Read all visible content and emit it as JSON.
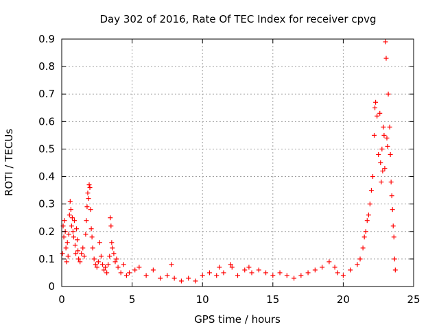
{
  "chart_data": {
    "type": "scatter",
    "title": "Day 302 of 2016, Rate Of TEC Index for receiver cpvg",
    "xlabel": "GPS time / hours",
    "ylabel": "ROTI / TECUs",
    "xlim": [
      0,
      25
    ],
    "ylim": [
      0,
      0.9
    ],
    "xticks": [
      "0",
      "5",
      "10",
      "15",
      "20",
      "25"
    ],
    "yticks": [
      "0",
      "0.1",
      "0.2",
      "0.3",
      "0.4",
      "0.5",
      "0.6",
      "0.7",
      "0.8",
      "0.9"
    ],
    "grid": true,
    "marker": "+",
    "series": [
      {
        "color": "#ff0000",
        "points": [
          [
            0.05,
            0.12
          ],
          [
            0.1,
            0.22
          ],
          [
            0.15,
            0.18
          ],
          [
            0.2,
            0.24
          ],
          [
            0.25,
            0.2
          ],
          [
            0.3,
            0.14
          ],
          [
            0.35,
            0.09
          ],
          [
            0.4,
            0.16
          ],
          [
            0.45,
            0.11
          ],
          [
            0.5,
            0.19
          ],
          [
            0.55,
            0.26
          ],
          [
            0.6,
            0.31
          ],
          [
            0.65,
            0.28
          ],
          [
            0.7,
            0.22
          ],
          [
            0.75,
            0.25
          ],
          [
            0.8,
            0.2
          ],
          [
            0.85,
            0.18
          ],
          [
            0.9,
            0.24
          ],
          [
            0.95,
            0.15
          ],
          [
            1.0,
            0.12
          ],
          [
            1.05,
            0.21
          ],
          [
            1.1,
            0.17
          ],
          [
            1.15,
            0.13
          ],
          [
            1.2,
            0.1
          ],
          [
            1.3,
            0.09
          ],
          [
            1.4,
            0.12
          ],
          [
            1.5,
            0.14
          ],
          [
            1.6,
            0.11
          ],
          [
            1.7,
            0.19
          ],
          [
            1.75,
            0.24
          ],
          [
            1.8,
            0.29
          ],
          [
            1.85,
            0.34
          ],
          [
            1.9,
            0.32
          ],
          [
            1.95,
            0.37
          ],
          [
            2.0,
            0.36
          ],
          [
            2.05,
            0.28
          ],
          [
            2.1,
            0.21
          ],
          [
            2.15,
            0.18
          ],
          [
            2.2,
            0.14
          ],
          [
            2.3,
            0.1
          ],
          [
            2.4,
            0.08
          ],
          [
            2.5,
            0.07
          ],
          [
            2.6,
            0.09
          ],
          [
            2.7,
            0.16
          ],
          [
            2.8,
            0.11
          ],
          [
            2.9,
            0.08
          ],
          [
            3.0,
            0.06
          ],
          [
            3.1,
            0.07
          ],
          [
            3.2,
            0.05
          ],
          [
            3.3,
            0.08
          ],
          [
            3.4,
            0.11
          ],
          [
            3.45,
            0.25
          ],
          [
            3.5,
            0.22
          ],
          [
            3.55,
            0.16
          ],
          [
            3.6,
            0.14
          ],
          [
            3.7,
            0.12
          ],
          [
            3.8,
            0.09
          ],
          [
            3.9,
            0.1
          ],
          [
            4.0,
            0.07
          ],
          [
            4.2,
            0.05
          ],
          [
            4.4,
            0.08
          ],
          [
            4.6,
            0.04
          ],
          [
            4.8,
            0.05
          ],
          [
            5.2,
            0.06
          ],
          [
            5.5,
            0.07
          ],
          [
            6.0,
            0.04
          ],
          [
            6.5,
            0.06
          ],
          [
            7.0,
            0.03
          ],
          [
            7.5,
            0.04
          ],
          [
            7.8,
            0.08
          ],
          [
            8.0,
            0.03
          ],
          [
            8.5,
            0.02
          ],
          [
            9.0,
            0.03
          ],
          [
            9.5,
            0.02
          ],
          [
            10.0,
            0.04
          ],
          [
            10.5,
            0.05
          ],
          [
            11.0,
            0.04
          ],
          [
            11.2,
            0.07
          ],
          [
            11.5,
            0.05
          ],
          [
            12.0,
            0.08
          ],
          [
            12.1,
            0.07
          ],
          [
            12.5,
            0.04
          ],
          [
            13.0,
            0.06
          ],
          [
            13.3,
            0.07
          ],
          [
            13.5,
            0.05
          ],
          [
            14.0,
            0.06
          ],
          [
            14.5,
            0.05
          ],
          [
            15.0,
            0.04
          ],
          [
            15.5,
            0.05
          ],
          [
            16.0,
            0.04
          ],
          [
            16.5,
            0.03
          ],
          [
            17.0,
            0.04
          ],
          [
            17.5,
            0.05
          ],
          [
            18.0,
            0.06
          ],
          [
            18.5,
            0.07
          ],
          [
            19.0,
            0.09
          ],
          [
            19.4,
            0.07
          ],
          [
            19.6,
            0.05
          ],
          [
            20.0,
            0.04
          ],
          [
            20.5,
            0.06
          ],
          [
            21.0,
            0.08
          ],
          [
            21.2,
            0.1
          ],
          [
            21.4,
            0.14
          ],
          [
            21.5,
            0.18
          ],
          [
            21.6,
            0.2
          ],
          [
            21.7,
            0.24
          ],
          [
            21.8,
            0.26
          ],
          [
            21.9,
            0.3
          ],
          [
            22.0,
            0.35
          ],
          [
            22.1,
            0.4
          ],
          [
            22.2,
            0.55
          ],
          [
            22.25,
            0.65
          ],
          [
            22.3,
            0.67
          ],
          [
            22.4,
            0.62
          ],
          [
            22.5,
            0.48
          ],
          [
            22.6,
            0.63
          ],
          [
            22.65,
            0.45
          ],
          [
            22.7,
            0.38
          ],
          [
            22.75,
            0.5
          ],
          [
            22.8,
            0.42
          ],
          [
            22.85,
            0.58
          ],
          [
            22.9,
            0.55
          ],
          [
            22.95,
            0.43
          ],
          [
            23.0,
            0.89
          ],
          [
            23.05,
            0.83
          ],
          [
            23.1,
            0.54
          ],
          [
            23.15,
            0.51
          ],
          [
            23.2,
            0.7
          ],
          [
            23.3,
            0.58
          ],
          [
            23.35,
            0.48
          ],
          [
            23.4,
            0.38
          ],
          [
            23.45,
            0.33
          ],
          [
            23.5,
            0.28
          ],
          [
            23.55,
            0.22
          ],
          [
            23.6,
            0.18
          ],
          [
            23.65,
            0.1
          ],
          [
            23.7,
            0.06
          ]
        ]
      }
    ]
  }
}
